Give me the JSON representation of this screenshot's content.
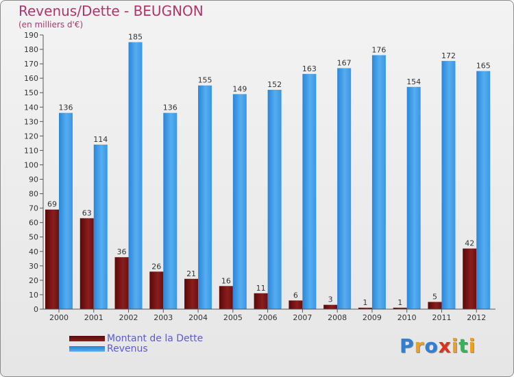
{
  "chart_data": {
    "type": "bar",
    "title": "Revenus/Dette - BEUGNON",
    "subtitle": "(en milliers d'€)",
    "categories": [
      "2000",
      "2001",
      "2002",
      "2003",
      "2004",
      "2005",
      "2006",
      "2007",
      "2008",
      "2009",
      "2010",
      "2011",
      "2012"
    ],
    "series": [
      {
        "name": "Montant de la Dette",
        "color": "#7a1010",
        "values": [
          69,
          63,
          36,
          26,
          21,
          16,
          11,
          6,
          3,
          1,
          1,
          5,
          42
        ]
      },
      {
        "name": "Revenus",
        "color": "#3d9be6",
        "values": [
          136,
          114,
          185,
          136,
          155,
          149,
          152,
          163,
          167,
          176,
          154,
          172,
          165
        ]
      }
    ],
    "y_ticks": [
      0,
      10,
      20,
      30,
      40,
      50,
      60,
      70,
      80,
      90,
      100,
      110,
      120,
      130,
      140,
      150,
      160,
      170,
      180,
      190
    ],
    "ylim": [
      0,
      190
    ],
    "xlabel": "",
    "ylabel": "",
    "grid": false,
    "legend_position": "bottom-left"
  },
  "logo": {
    "letters": [
      "P",
      "r",
      "o",
      "x",
      "i",
      "t",
      "i"
    ],
    "colors": [
      "#2f7fd4",
      "#f0a020",
      "#2f7fd4",
      "#e0301e",
      "#f0a020",
      "#3ab05a",
      "#f0a020"
    ]
  }
}
